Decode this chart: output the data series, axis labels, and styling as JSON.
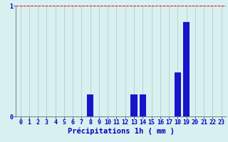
{
  "hours": [
    0,
    1,
    2,
    3,
    4,
    5,
    6,
    7,
    8,
    9,
    10,
    11,
    12,
    13,
    14,
    15,
    16,
    17,
    18,
    19,
    20,
    21,
    22,
    23
  ],
  "values": [
    0,
    0,
    0,
    0,
    0,
    0,
    0,
    0,
    0.2,
    0,
    0,
    0,
    0,
    0.2,
    0.2,
    0,
    0,
    0,
    0.4,
    0.85,
    0,
    0,
    0,
    0
  ],
  "bar_color": "#1515cc",
  "background_color": "#d8f0f0",
  "grid_color": "#b8cece",
  "text_color": "#0000bb",
  "xlabel": "Précipitations 1h ( mm )",
  "ylim": [
    0,
    1.0
  ],
  "yticks": [
    0,
    1
  ],
  "xlim": [
    -0.5,
    23.5
  ],
  "bar_width": 0.75,
  "xlabel_fontsize": 7.5,
  "tick_fontsize": 6,
  "redline_color": "#dd0000",
  "spine_color": "#888888"
}
